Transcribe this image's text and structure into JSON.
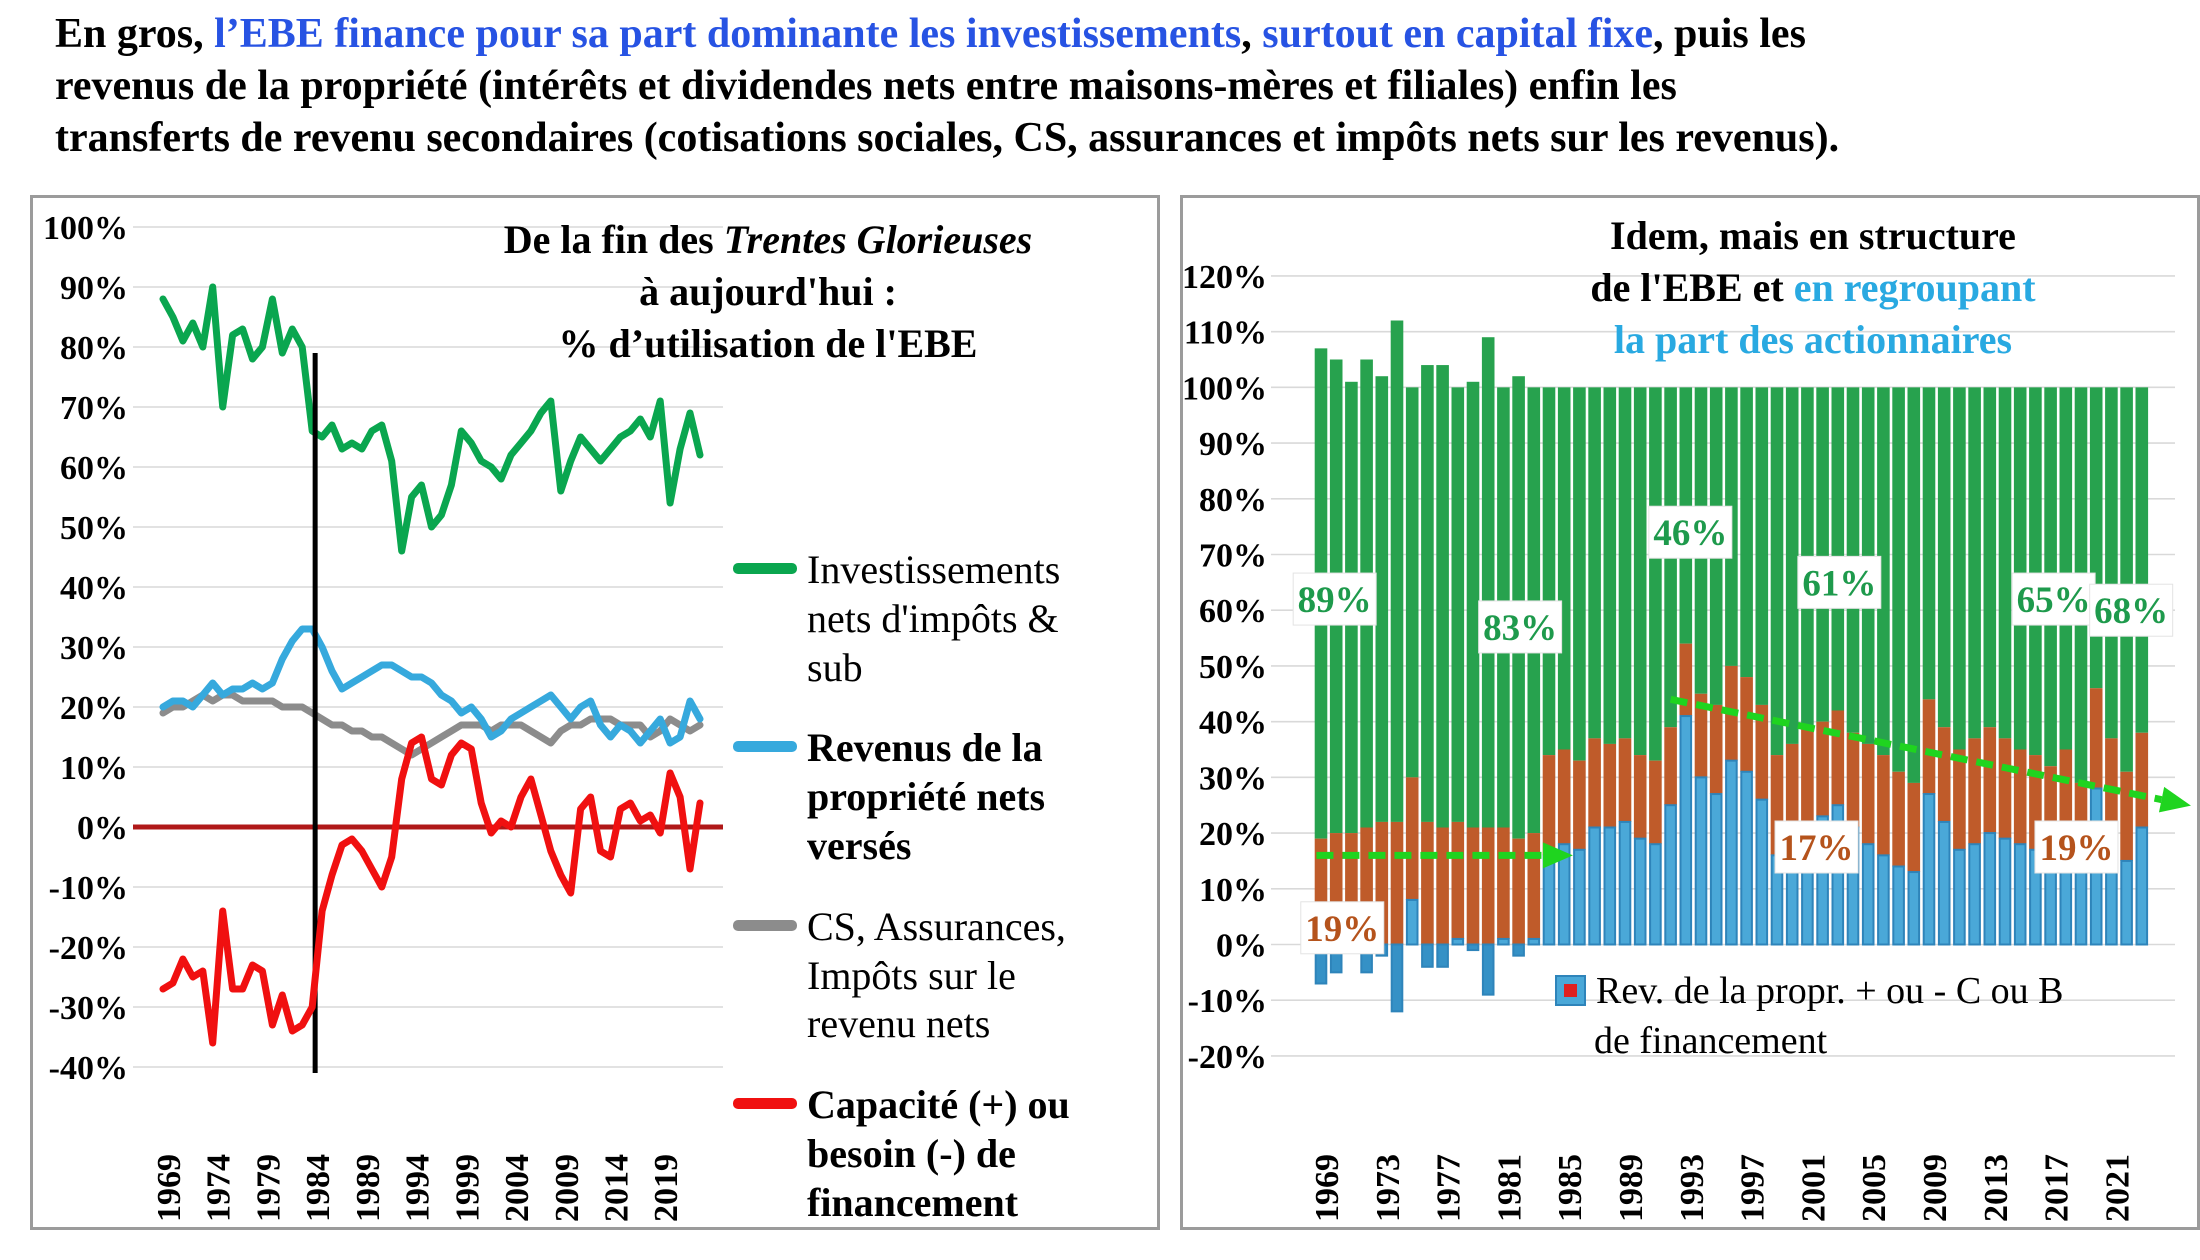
{
  "header": {
    "line1_a": "En gros, ",
    "line1_b_blue": "l’EBE finance pour sa part dominante les investissements",
    "line1_c": ", ",
    "line1_d_blue": "surtout en capital fixe",
    "line1_e": ", puis les",
    "line2": "revenus de la propriété (intérêts et dividendes nets entre maisons-mères et filiales) enfin les",
    "line3": "transferts de revenu secondaires (cotisations sociales, CS, assurances et impôts nets sur les revenus)."
  },
  "colors": {
    "header_blue": "#2753e3",
    "title_cyan": "#29a9e1",
    "green_line": "#0aa64f",
    "blue_line": "#36a9dd",
    "gray_line": "#8c8c8c",
    "red_line": "#f01010",
    "zero_line": "#b01818",
    "black_vline": "#000000",
    "bar_green": "#27a24e",
    "bar_brown": "#bf5b2a",
    "bar_blue": "#4aa8d8",
    "bar_blue_dark": "#3591c6",
    "bar_blue_stroke": "#2e84ba",
    "arrow_green": "#1fd41f",
    "ann_green": "#1e9a4c",
    "ann_orange": "#b5531c",
    "legend_red": "#e02020",
    "grid": "#d9d9d9"
  },
  "chart_data": [
    {
      "type": "line",
      "title_line1_pre": "De la fin des ",
      "title_line1_italic": "Trentes Glorieuses",
      "title_line2": "à aujourd'hui :",
      "title_line3": "% d’utilisation de l'EBE",
      "ylim": [
        -40,
        100
      ],
      "y_step": 10,
      "y_tick_format": "percent",
      "x_start_year": 1969,
      "x_end_year": 2023,
      "x_ticks": [
        1969,
        1974,
        1979,
        1984,
        1989,
        1994,
        1999,
        2004,
        2009,
        2014,
        2019
      ],
      "vline_year": 1984.3,
      "zero_line_value": 0,
      "grid": true,
      "legend_position": "right",
      "series": [
        {
          "name": "Investissements nets d'impôts & sub",
          "legend_lines": [
            "Investissements",
            "nets d'impôts &",
            "sub"
          ],
          "color_key": "green_line",
          "bold": false,
          "values": [
            88,
            85,
            81,
            84,
            80,
            90,
            70,
            82,
            83,
            78,
            80,
            88,
            79,
            83,
            80,
            66,
            65,
            67,
            63,
            64,
            63,
            66,
            67,
            61,
            46,
            55,
            57,
            50,
            52,
            57,
            66,
            64,
            61,
            60,
            58,
            62,
            64,
            66,
            69,
            71,
            56,
            61,
            65,
            63,
            61,
            63,
            65,
            66,
            68,
            65,
            71,
            54,
            63,
            69,
            62
          ]
        },
        {
          "name": "Revenus de la propriété nets versés",
          "legend_lines": [
            "Revenus de la",
            "propriété nets",
            "versés"
          ],
          "color_key": "blue_line",
          "bold": true,
          "values": [
            20,
            21,
            21,
            20,
            22,
            24,
            22,
            23,
            23,
            24,
            23,
            24,
            28,
            31,
            33,
            33,
            30,
            26,
            23,
            24,
            25,
            26,
            27,
            27,
            26,
            25,
            25,
            24,
            22,
            21,
            19,
            20,
            18,
            15,
            16,
            18,
            19,
            20,
            21,
            22,
            20,
            18,
            20,
            21,
            17,
            15,
            17,
            16,
            14,
            16,
            18,
            14,
            15,
            21,
            18
          ]
        },
        {
          "name": "CS, Assurances, Impôts sur le revenu nets",
          "legend_lines": [
            "CS, Assurances,",
            "Impôts sur le",
            "revenu nets"
          ],
          "color_key": "gray_line",
          "bold": false,
          "values": [
            19,
            20,
            20,
            21,
            22,
            21,
            22,
            22,
            21,
            21,
            21,
            21,
            20,
            20,
            20,
            19,
            18,
            17,
            17,
            16,
            16,
            15,
            15,
            14,
            13,
            12,
            13,
            14,
            15,
            16,
            17,
            17,
            17,
            16,
            17,
            17,
            17,
            16,
            15,
            14,
            16,
            17,
            17,
            18,
            18,
            18,
            17,
            17,
            17,
            15,
            16,
            18,
            17,
            16,
            17
          ]
        },
        {
          "name": "Capacité (+) ou besoin (-) de financement",
          "legend_lines": [
            "Capacité (+) ou",
            "besoin (-) de",
            "financement"
          ],
          "color_key": "red_line",
          "bold": true,
          "values": [
            -27,
            -26,
            -22,
            -25,
            -24,
            -36,
            -14,
            -27,
            -27,
            -23,
            -24,
            -33,
            -28,
            -34,
            -33,
            -30,
            -14,
            -8,
            -3,
            -2,
            -4,
            -7,
            -10,
            -5,
            8,
            14,
            15,
            8,
            7,
            12,
            14,
            13,
            4,
            -1,
            1,
            0,
            5,
            8,
            2,
            -4,
            -8,
            -11,
            3,
            5,
            -4,
            -5,
            3,
            4,
            1,
            2,
            -1,
            9,
            5,
            -7,
            4
          ]
        }
      ]
    },
    {
      "type": "stacked-bar",
      "title_line1": "Idem, mais en structure",
      "title_line2_black": "de l'EBE et ",
      "title_line2_cyan": "en regroupant",
      "title_line3": "la part des actionnaires",
      "ylim": [
        -20,
        120
      ],
      "y_step": 10,
      "y_tick_format": "percent",
      "x_start_year": 1969,
      "x_end_year": 2023,
      "x_ticks": [
        1969,
        1973,
        1977,
        1981,
        1985,
        1989,
        1993,
        1997,
        2001,
        2005,
        2009,
        2013,
        2017,
        2021
      ],
      "grid": true,
      "stack_total": 100,
      "series": [
        {
          "name": "Rev. de la propr. + ou - C ou B de financement",
          "color_key": "bar_blue",
          "values": [
            -7,
            -5,
            -1,
            -5,
            -2,
            -12,
            8,
            -4,
            -4,
            1,
            -1,
            -9,
            1,
            -2,
            1,
            16,
            18,
            17,
            21,
            21,
            22,
            19,
            18,
            25,
            41,
            30,
            27,
            33,
            31,
            26,
            16,
            19,
            22,
            23,
            25,
            21,
            18,
            16,
            14,
            13,
            27,
            22,
            17,
            18,
            20,
            19,
            18,
            17,
            14,
            20,
            13,
            28,
            20,
            15,
            21
          ]
        },
        {
          "name": "CS, Assurances, Impôts sur le revenu nets",
          "color_key": "bar_brown",
          "values": [
            19,
            20,
            20,
            21,
            22,
            22,
            22,
            22,
            21,
            21,
            21,
            21,
            20,
            19,
            19,
            18,
            17,
            16,
            16,
            15,
            15,
            15,
            15,
            14,
            13,
            15,
            16,
            17,
            17,
            17,
            18,
            17,
            17,
            17,
            17,
            17,
            18,
            18,
            17,
            16,
            17,
            17,
            18,
            19,
            19,
            18,
            17,
            17,
            18,
            15,
            16,
            18,
            17,
            16,
            17
          ]
        },
        {
          "name": "Investissements nets d'impôts & sub",
          "color_key": "bar_green",
          "values": [
            88,
            85,
            81,
            84,
            80,
            90,
            70,
            82,
            83,
            78,
            80,
            88,
            79,
            83,
            80,
            66,
            65,
            67,
            63,
            64,
            63,
            66,
            67,
            61,
            46,
            55,
            57,
            50,
            52,
            57,
            66,
            64,
            61,
            60,
            58,
            62,
            64,
            66,
            69,
            71,
            56,
            61,
            65,
            63,
            61,
            63,
            65,
            66,
            68,
            65,
            71,
            54,
            63,
            69,
            62
          ]
        }
      ],
      "legend": {
        "lines": [
          "Rev. de la propr. + ou - C ou B",
          "de financement"
        ]
      },
      "annotations": [
        {
          "text": "89%",
          "color": "green",
          "year": 1969.9,
          "value": 62
        },
        {
          "text": "83%",
          "color": "green",
          "year": 1982.1,
          "value": 57
        },
        {
          "text": "46%",
          "color": "green",
          "year": 1993.3,
          "value": 74
        },
        {
          "text": "61%",
          "color": "green",
          "year": 2003.1,
          "value": 65
        },
        {
          "text": "65%",
          "color": "green",
          "year": 2017.2,
          "value": 62
        },
        {
          "text": "68%",
          "color": "green",
          "year": 2022.3,
          "value": 60
        },
        {
          "text": "19%",
          "color": "orange",
          "year": 1970.4,
          "value": 3
        },
        {
          "text": "17%",
          "color": "orange",
          "year": 2001.6,
          "value": 17.5
        },
        {
          "text": "19%",
          "color": "orange",
          "year": 2018.7,
          "value": 17.5
        }
      ],
      "trend_arrows": [
        {
          "x1_year": 1968.7,
          "y1": 16,
          "x2_year": 1983.6,
          "y2": 16
        },
        {
          "x1_year": 1992.0,
          "y1": 44,
          "x2_year": 2024.3,
          "y2": 26
        }
      ]
    }
  ]
}
